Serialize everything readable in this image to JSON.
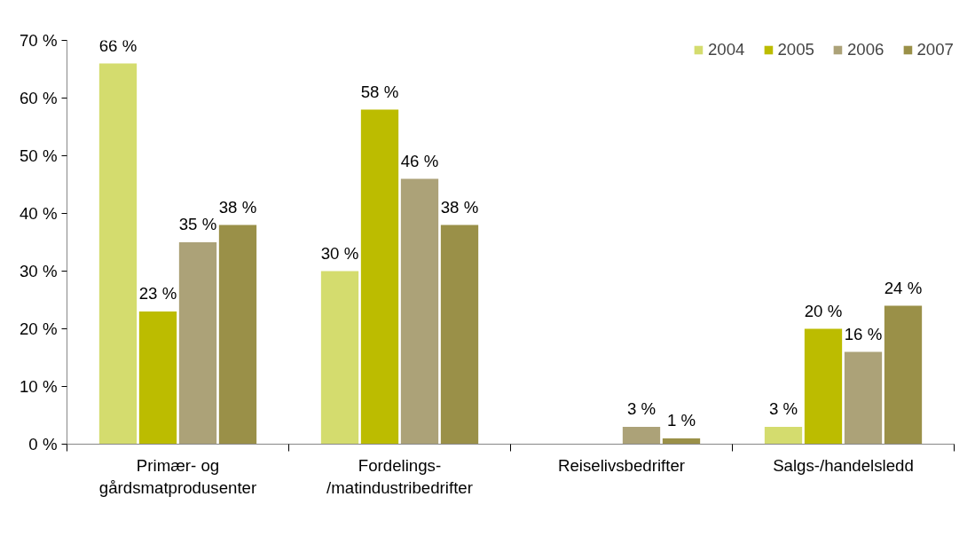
{
  "chart_data": {
    "type": "bar",
    "categories": [
      "Primær- og\ngårdsmatprodusenter",
      "Fordelings-\n/matindustribedrifter",
      "Reiselivsbedrifter",
      "Salgs-/handelsledd"
    ],
    "series": [
      {
        "name": "2004",
        "color": "#d4dc6e",
        "values": [
          66,
          30,
          null,
          3
        ],
        "value_labels": [
          "66 %",
          "30 %",
          null,
          "3 %"
        ]
      },
      {
        "name": "2005",
        "color": "#bcbc00",
        "values": [
          23,
          58,
          null,
          20
        ],
        "value_labels": [
          "23 %",
          "58 %",
          null,
          "20 %"
        ]
      },
      {
        "name": "2006",
        "color": "#aca278",
        "values": [
          35,
          46,
          3,
          16
        ],
        "value_labels": [
          "35 %",
          "46 %",
          "3 %",
          "16 %"
        ]
      },
      {
        "name": "2007",
        "color": "#9a9048",
        "values": [
          38,
          38,
          1,
          24
        ],
        "value_labels": [
          "38 %",
          "38 %",
          "1 %",
          "24 %"
        ]
      }
    ],
    "ylim": [
      0,
      70
    ],
    "yticks": [
      {
        "value": 0,
        "label": "0 %"
      },
      {
        "value": 10,
        "label": "10 %"
      },
      {
        "value": 20,
        "label": "20 %"
      },
      {
        "value": 30,
        "label": "30 %"
      },
      {
        "value": 40,
        "label": "40 %"
      },
      {
        "value": 50,
        "label": "50 %"
      },
      {
        "value": 60,
        "label": "60 %"
      },
      {
        "value": 70,
        "label": "70 %"
      }
    ],
    "grid": false,
    "legend": "top right"
  }
}
